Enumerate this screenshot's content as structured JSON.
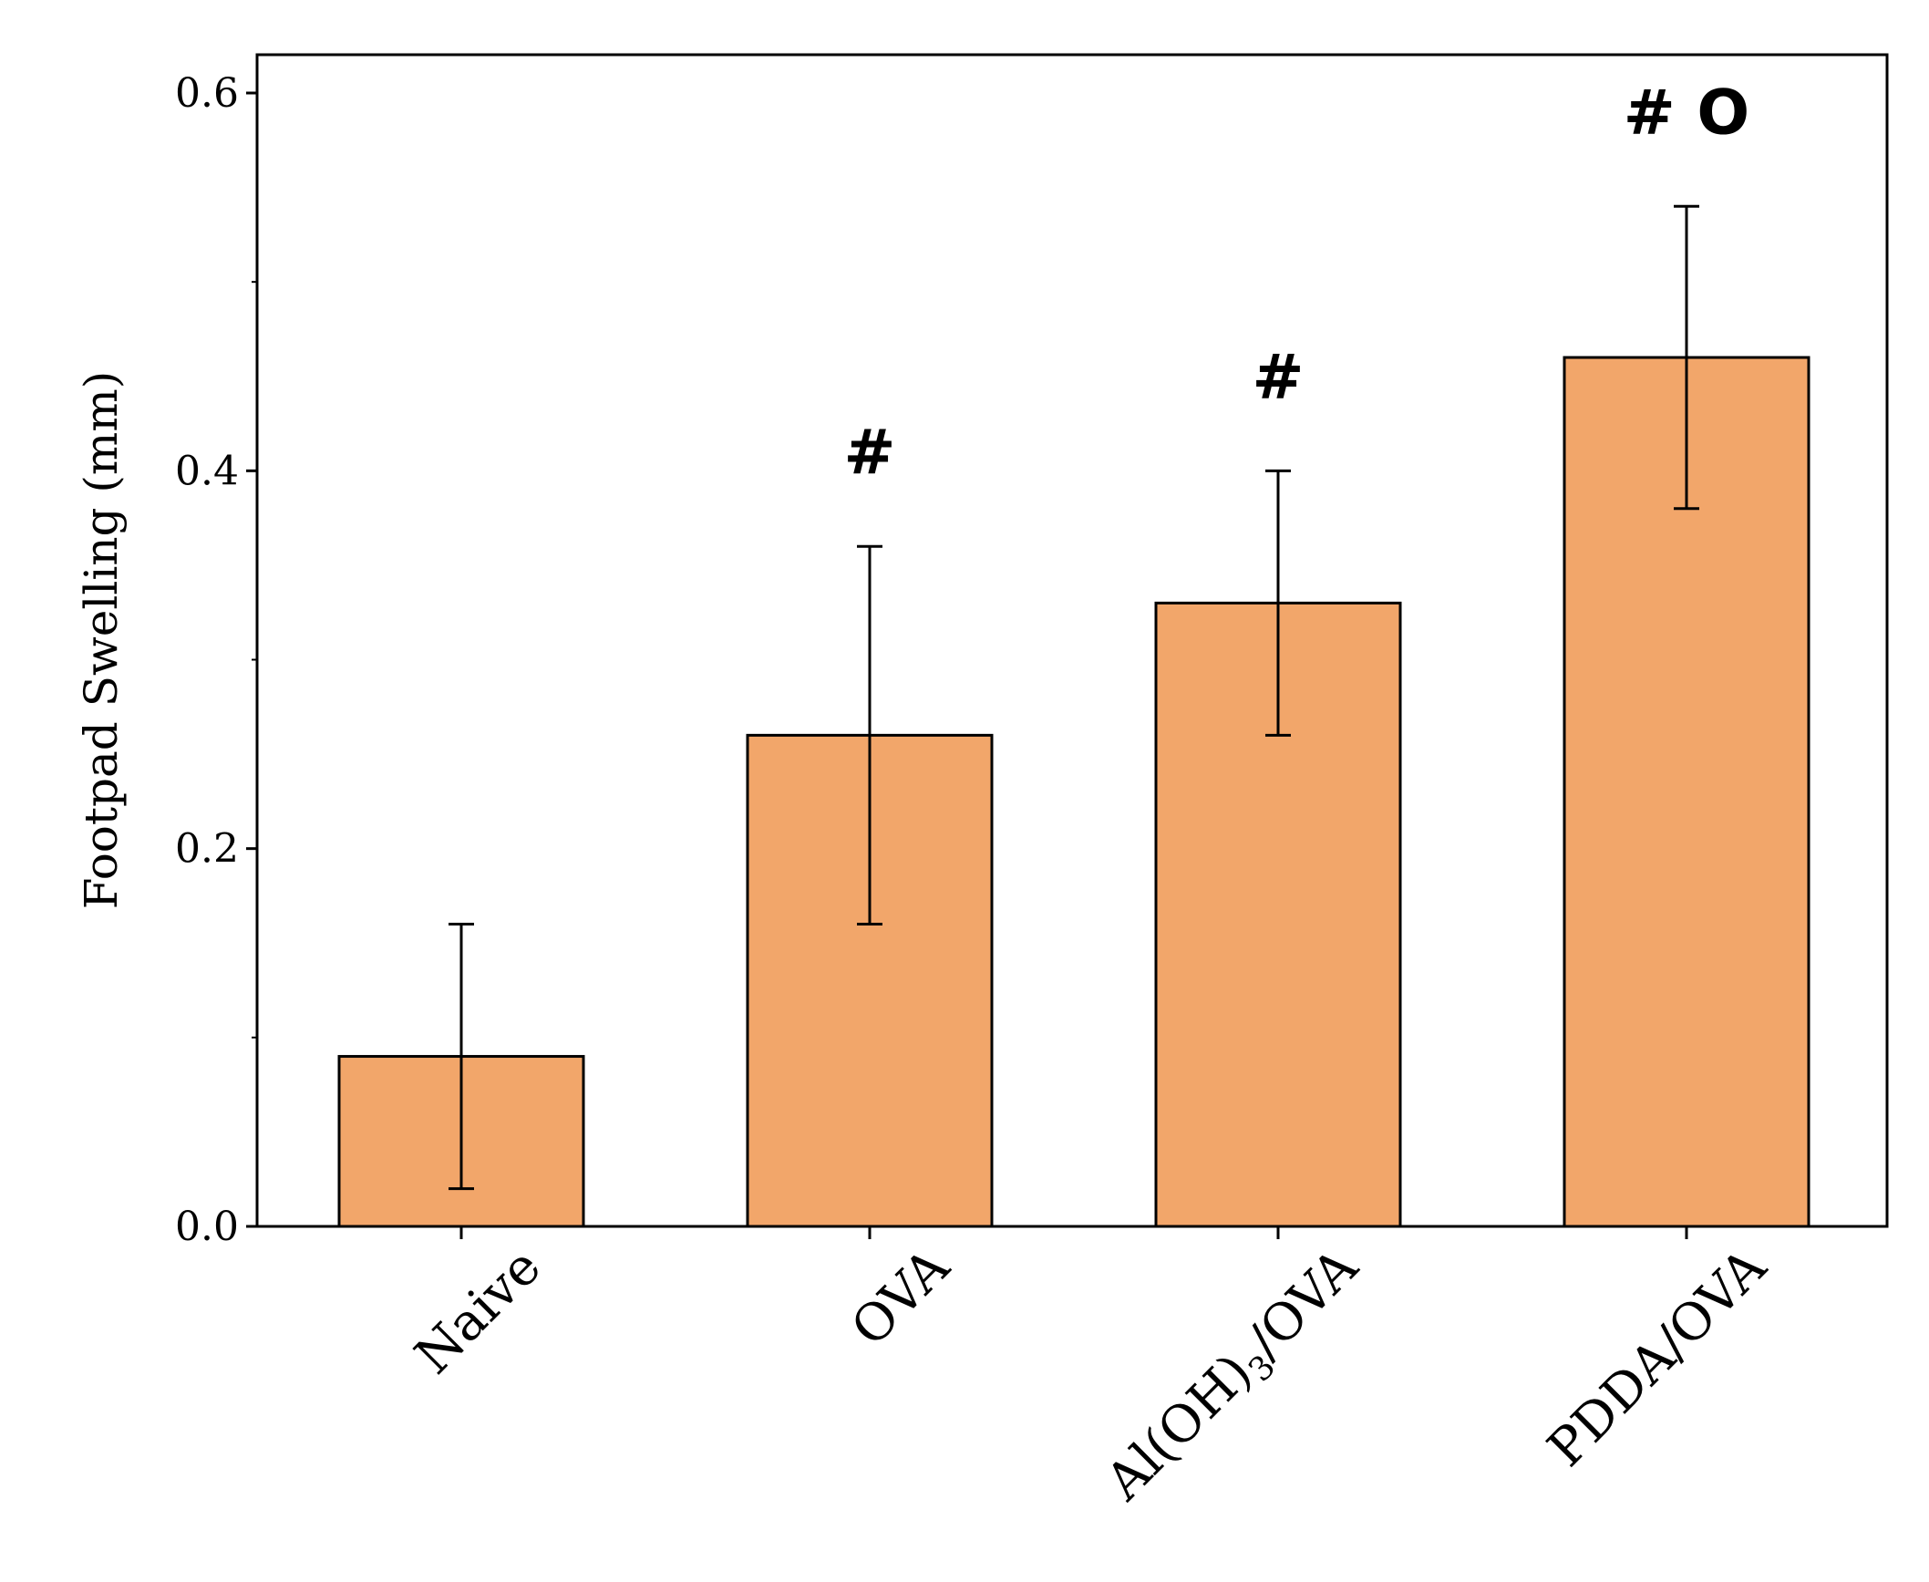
{
  "chart_data": {
    "type": "bar",
    "title": "",
    "xlabel": "",
    "ylabel": "Footpad Swelling (mm)",
    "ylim": [
      0,
      0.62
    ],
    "yticks": [
      0.0,
      0.2,
      0.4,
      0.6
    ],
    "ytick_labels": [
      "0.0",
      "0.2",
      "0.4",
      "0.6"
    ],
    "categories": [
      {
        "label": "Naive"
      },
      {
        "label": "OVA"
      },
      {
        "label": "Al(OH)",
        "subscript": "3",
        "suffix": "/OVA"
      },
      {
        "label": "PDDA/OVA"
      }
    ],
    "values": [
      0.09,
      0.26,
      0.33,
      0.46
    ],
    "error_low": [
      0.02,
      0.16,
      0.26,
      0.38
    ],
    "error_high": [
      0.16,
      0.36,
      0.4,
      0.54
    ],
    "annotations": [
      "",
      "#",
      "#",
      "# O"
    ],
    "bar_color": "#F2A66A",
    "bar_edge_color": "#000000"
  }
}
